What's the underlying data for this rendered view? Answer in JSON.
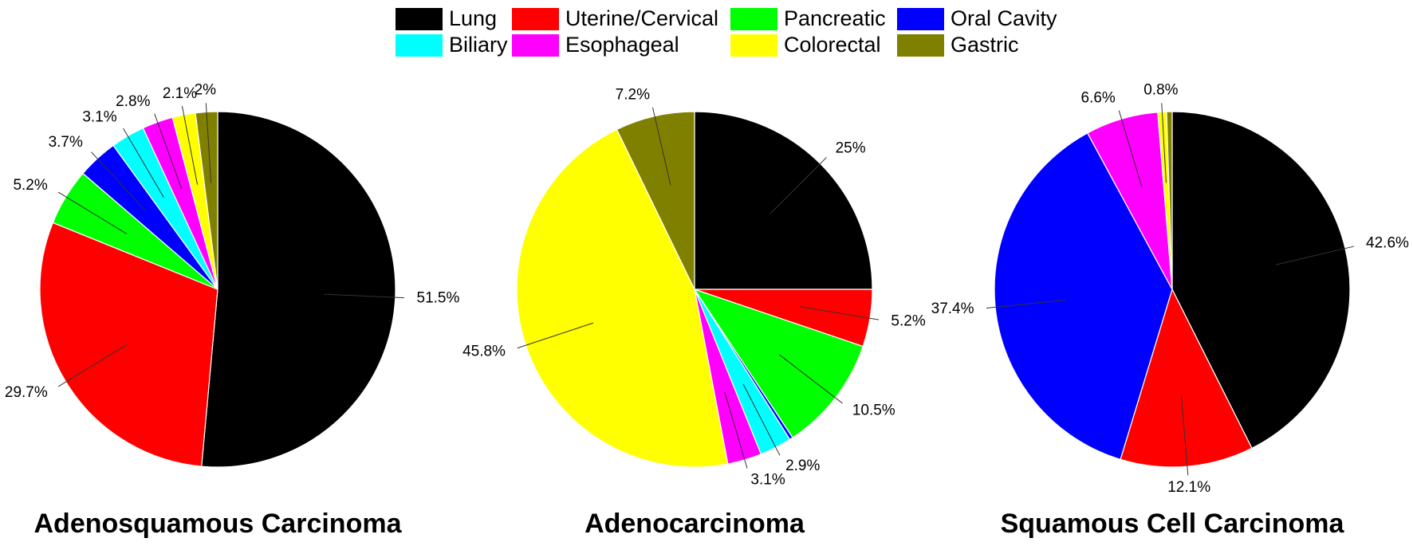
{
  "legend": {
    "categories": [
      "Lung",
      "Uterine/Cervical",
      "Pancreatic",
      "Oral Cavity",
      "Biliary",
      "Esophageal",
      "Colorectal",
      "Gastric"
    ],
    "colors": [
      "#000000",
      "#ff0000",
      "#00ff00",
      "#0000ff",
      "#00ffff",
      "#ff00ff",
      "#ffff00",
      "#808000"
    ]
  },
  "chart_data": [
    {
      "type": "pie",
      "title": "Adenosquamous Carcinoma",
      "values": [
        51.5,
        29.7,
        5.2,
        3.7,
        3.1,
        2.8,
        2.1,
        2
      ],
      "value_labels": [
        "51.5%",
        "29.7%",
        "5.2%",
        "3.7%",
        "3.1%",
        "2.8%",
        "2.1%",
        "2%"
      ]
    },
    {
      "type": "pie",
      "title": "Adenocarcinoma",
      "values": [
        25,
        5.2,
        10.5,
        0.3,
        2.9,
        3.1,
        45.8,
        7.2
      ],
      "value_labels": [
        "25%",
        "5.2%",
        "10.5%",
        null,
        "2.9%",
        "3.1%",
        "45.8%",
        "7.2%"
      ]
    },
    {
      "type": "pie",
      "title": "Squamous Cell Carcinoma",
      "values": [
        42.6,
        12.1,
        null,
        37.4,
        null,
        6.6,
        0.8,
        0.5
      ],
      "value_labels": [
        "42.6%",
        "12.1%",
        null,
        "37.4%",
        null,
        "6.6%",
        "0.8%",
        null
      ]
    }
  ]
}
